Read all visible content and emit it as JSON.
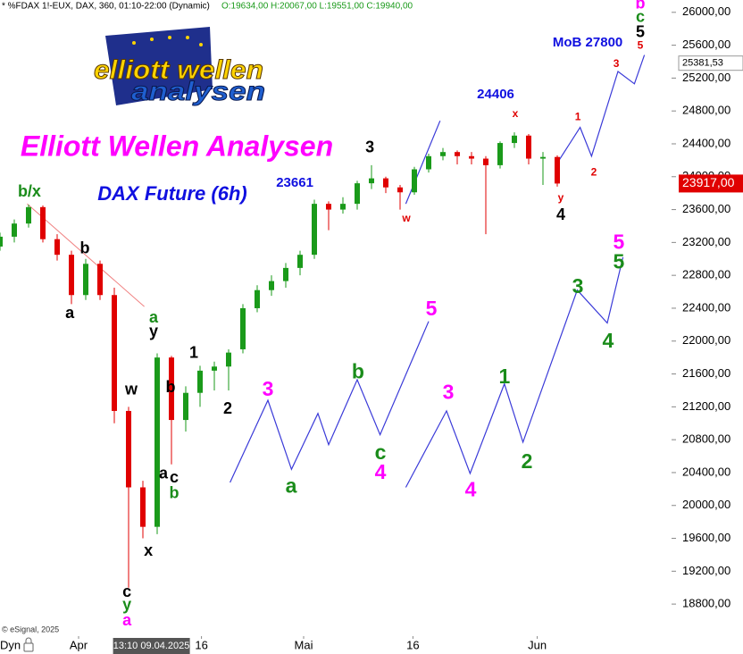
{
  "chart_data": {
    "type": "candlestick",
    "header": "* %FDAX 1!-EUX, DAX, 360, 01:10-22:00 (Dynamic)",
    "ohlc_text": "O:19634,00 H:20067,00 L:19551,00 C:19940,00",
    "title": "Elliott Wellen Analysen",
    "subtitle": "DAX Future (6h)",
    "copyright": "© eSignal, 2025",
    "mode": "Dyn",
    "cursor_label": "13:10 09.04.2025",
    "logo": {
      "line1": "elliott wellen",
      "line2": "analysen"
    },
    "up_color": "#1a9a1a",
    "down_color": "#e00000",
    "xlim": [
      0,
      47
    ],
    "xticks": [
      {
        "value": 5.5,
        "label": "Apr"
      },
      {
        "value": 14.1,
        "label": "16"
      },
      {
        "value": 21.25,
        "label": "Mai"
      },
      {
        "value": 28.9,
        "label": "16"
      },
      {
        "value": 37.6,
        "label": "Jun"
      }
    ],
    "cursor_x": 10.6,
    "ylim": [
      18410,
      26150
    ],
    "yticks": [
      {
        "value": 18800,
        "label": "18800,00"
      },
      {
        "value": 19200,
        "label": "19200,00"
      },
      {
        "value": 19600,
        "label": "19600,00"
      },
      {
        "value": 20000,
        "label": "20000,00"
      },
      {
        "value": 20400,
        "label": "20400,00"
      },
      {
        "value": 20800,
        "label": "20800,00"
      },
      {
        "value": 21200,
        "label": "21200,00"
      },
      {
        "value": 21600,
        "label": "21600,00"
      },
      {
        "value": 22000,
        "label": "22000,00"
      },
      {
        "value": 22400,
        "label": "22400,00"
      },
      {
        "value": 22800,
        "label": "22800,00"
      },
      {
        "value": 23200,
        "label": "23200,00"
      },
      {
        "value": 23600,
        "label": "23600,00"
      },
      {
        "value": 24000,
        "label": "24000,00"
      },
      {
        "value": 24400,
        "label": "24400,00"
      },
      {
        "value": 24800,
        "label": "24800,00"
      },
      {
        "value": 25200,
        "label": "25200,00"
      },
      {
        "value": 25600,
        "label": "25600,00"
      },
      {
        "value": 26000,
        "label": "26000,00"
      }
    ],
    "last_price": {
      "value": 23917,
      "label": "23917,00",
      "color": "#e00000"
    },
    "marker_price": {
      "value": 25381.53,
      "label": "25381,53"
    },
    "candles": {
      "x": [
        0,
        1,
        2,
        3,
        4,
        5,
        6,
        7,
        8,
        9,
        10,
        11,
        12,
        13,
        14,
        15,
        16,
        17,
        18,
        19,
        20,
        21,
        22,
        23,
        24,
        25,
        26,
        27,
        28,
        29,
        30,
        31,
        32,
        33,
        34,
        35,
        36,
        37,
        38,
        39
      ],
      "open": [
        23150,
        23270,
        23430,
        23630,
        23240,
        23050,
        22560,
        22940,
        22560,
        21150,
        20220,
        19740,
        21800,
        21040,
        21370,
        21640,
        21690,
        21900,
        22400,
        22620,
        22730,
        22890,
        23050,
        23670,
        23600,
        23670,
        23920,
        23980,
        23870,
        23810,
        24090,
        24250,
        24300,
        24250,
        24220,
        24140,
        24410,
        24500,
        24220,
        24240
      ],
      "high": [
        23320,
        23480,
        23660,
        23650,
        23300,
        23100,
        23000,
        22980,
        22650,
        21200,
        20300,
        21850,
        21820,
        21450,
        21700,
        21750,
        21900,
        22450,
        22680,
        22800,
        22950,
        23100,
        23720,
        23700,
        23750,
        23950,
        24140,
        24000,
        23900,
        24120,
        24280,
        24350,
        24320,
        24300,
        24250,
        24430,
        24540,
        24520,
        24300,
        24260
      ],
      "low": [
        23100,
        23200,
        23380,
        23200,
        22980,
        22450,
        22500,
        22500,
        21000,
        19000,
        19600,
        19650,
        20500,
        20900,
        21200,
        21400,
        21400,
        21850,
        22350,
        22550,
        22650,
        22800,
        23000,
        23350,
        23550,
        23600,
        23850,
        23800,
        23600,
        23780,
        24050,
        24200,
        24150,
        24150,
        23300,
        24100,
        24350,
        24150,
        23900,
        23880
      ],
      "close": [
        23270,
        23430,
        23630,
        23240,
        23050,
        22560,
        22940,
        22560,
        21150,
        20220,
        19740,
        21800,
        21040,
        21370,
        21640,
        21690,
        21860,
        22400,
        22620,
        22730,
        22890,
        23050,
        23670,
        23600,
        23670,
        23920,
        23980,
        23870,
        23810,
        24090,
        24250,
        24300,
        24250,
        24220,
        24140,
        24410,
        24500,
        24220,
        24240,
        23917
      ]
    },
    "trend_line": {
      "color": "#f08080",
      "x": [
        1.9,
        10.1
      ],
      "y": [
        23670,
        22420
      ]
    },
    "projections": [
      {
        "color": "#3a3ad8",
        "x": [
          16.1,
          18.75,
          20.4,
          22.25,
          23,
          25,
          26.6,
          30
        ],
        "y": [
          20280,
          21280,
          20440,
          21120,
          20740,
          21530,
          20860,
          22240
        ]
      },
      {
        "color": "#3a3ad8",
        "x": [
          28.4,
          31.25,
          32.9,
          35.3,
          36.6,
          40.4,
          42.5,
          43.6
        ],
        "y": [
          20220,
          21150,
          20390,
          21480,
          20770,
          22620,
          22220,
          23020
        ]
      },
      {
        "color": "#3a3ad8",
        "x": [
          28.4,
          30.8
        ],
        "y": [
          23670,
          24680
        ]
      },
      {
        "color": "#3a3ad8",
        "x": [
          38.9,
          40.6,
          41.4,
          43.25,
          44.4,
          45.1
        ],
        "y": [
          24140,
          24600,
          24250,
          25280,
          25130,
          25480
        ]
      }
    ],
    "wave_labels": [
      {
        "text": "b/x",
        "color": "#1a8c1a",
        "x": 2.06,
        "y": 23810
      },
      {
        "text": "a",
        "color": "#000000",
        "x": 4.88,
        "y": 22330
      },
      {
        "text": "b",
        "color": "#000000",
        "x": 5.94,
        "y": 23120
      },
      {
        "text": "w",
        "color": "#000000",
        "x": 9.19,
        "y": 21400
      },
      {
        "text": "c",
        "color": "#000000",
        "x": 8.88,
        "y": 18940
      },
      {
        "text": "y",
        "color": "#1a8c1a",
        "x": 8.88,
        "y": 18780
      },
      {
        "text": "a",
        "color": "#ff00ff",
        "x": 8.88,
        "y": 18590
      },
      {
        "text": "x",
        "color": "#000000",
        "x": 10.38,
        "y": 19440
      },
      {
        "text": "a",
        "color": "#1a8c1a",
        "x": 10.75,
        "y": 22280
      },
      {
        "text": "y",
        "color": "#000000",
        "x": 10.75,
        "y": 22110
      },
      {
        "text": "1",
        "color": "#000000",
        "x": 13.56,
        "y": 21850
      },
      {
        "text": "b",
        "color": "#000000",
        "x": 11.94,
        "y": 21430
      },
      {
        "text": "a",
        "color": "#000000",
        "x": 11.44,
        "y": 20380
      },
      {
        "text": "c",
        "color": "#000000",
        "x": 12.19,
        "y": 20330
      },
      {
        "text": "b",
        "color": "#1a8c1a",
        "x": 12.19,
        "y": 20140
      },
      {
        "text": "2",
        "color": "#000000",
        "x": 15.94,
        "y": 21170
      },
      {
        "text": "3",
        "color": "#000000",
        "x": 25.88,
        "y": 24350
      },
      {
        "text": "4",
        "color": "#000000",
        "x": 39.25,
        "y": 23530
      },
      {
        "text": "b",
        "color": "#ff00ff",
        "x": 44.81,
        "y": 26100
      },
      {
        "text": "c",
        "color": "#1a8c1a",
        "x": 44.81,
        "y": 25935
      },
      {
        "text": "5",
        "color": "#000000",
        "x": 44.81,
        "y": 25750
      }
    ],
    "minor_labels": [
      {
        "text": "w",
        "color": "#e00000",
        "x": 28.44,
        "y": 23490
      },
      {
        "text": "x",
        "color": "#e00000",
        "x": 36.06,
        "y": 24760
      },
      {
        "text": "1",
        "color": "#e00000",
        "x": 40.44,
        "y": 24720
      },
      {
        "text": "2",
        "color": "#e00000",
        "x": 41.56,
        "y": 24050
      },
      {
        "text": "3",
        "color": "#e00000",
        "x": 43.13,
        "y": 25370
      },
      {
        "text": "y",
        "color": "#e00000",
        "x": 39.25,
        "y": 23740
      },
      {
        "text": "5",
        "color": "#e00000",
        "x": 44.81,
        "y": 25590
      }
    ],
    "projection_labels": [
      {
        "text": "3",
        "color": "#ff00ff",
        "x": 18.75,
        "y": 21400
      },
      {
        "text": "a",
        "color": "#1a8c1a",
        "x": 20.38,
        "y": 20220
      },
      {
        "text": "b",
        "color": "#1a8c1a",
        "x": 25.06,
        "y": 21610
      },
      {
        "text": "c",
        "color": "#1a8c1a",
        "x": 26.63,
        "y": 20630
      },
      {
        "text": "4",
        "color": "#ff00ff",
        "x": 26.63,
        "y": 20390
      },
      {
        "text": "5",
        "color": "#ff00ff",
        "x": 30.19,
        "y": 22380
      },
      {
        "text": "3",
        "color": "#ff00ff",
        "x": 31.38,
        "y": 21360
      },
      {
        "text": "4",
        "color": "#ff00ff",
        "x": 32.94,
        "y": 20180
      },
      {
        "text": "1",
        "color": "#1a8c1a",
        "x": 35.31,
        "y": 21550
      },
      {
        "text": "2",
        "color": "#1a8c1a",
        "x": 36.88,
        "y": 20520
      },
      {
        "text": "3",
        "color": "#1a8c1a",
        "x": 40.44,
        "y": 22650
      },
      {
        "text": "4",
        "color": "#1a8c1a",
        "x": 42.56,
        "y": 21990
      },
      {
        "text": "5",
        "color": "#ff00ff",
        "x": 43.31,
        "y": 23190
      },
      {
        "text": "5",
        "color": "#1a8c1a",
        "x": 43.31,
        "y": 22950
      }
    ],
    "price_notes": [
      {
        "text": "24406",
        "color": "#1010e0",
        "x": 34.69,
        "y": 25000
      },
      {
        "text": "23661",
        "color": "#1010e0",
        "x": 20.63,
        "y": 23920
      },
      {
        "text": "MoB 27800",
        "color": "#1010e0",
        "x": 41.13,
        "y": 25630
      }
    ]
  }
}
